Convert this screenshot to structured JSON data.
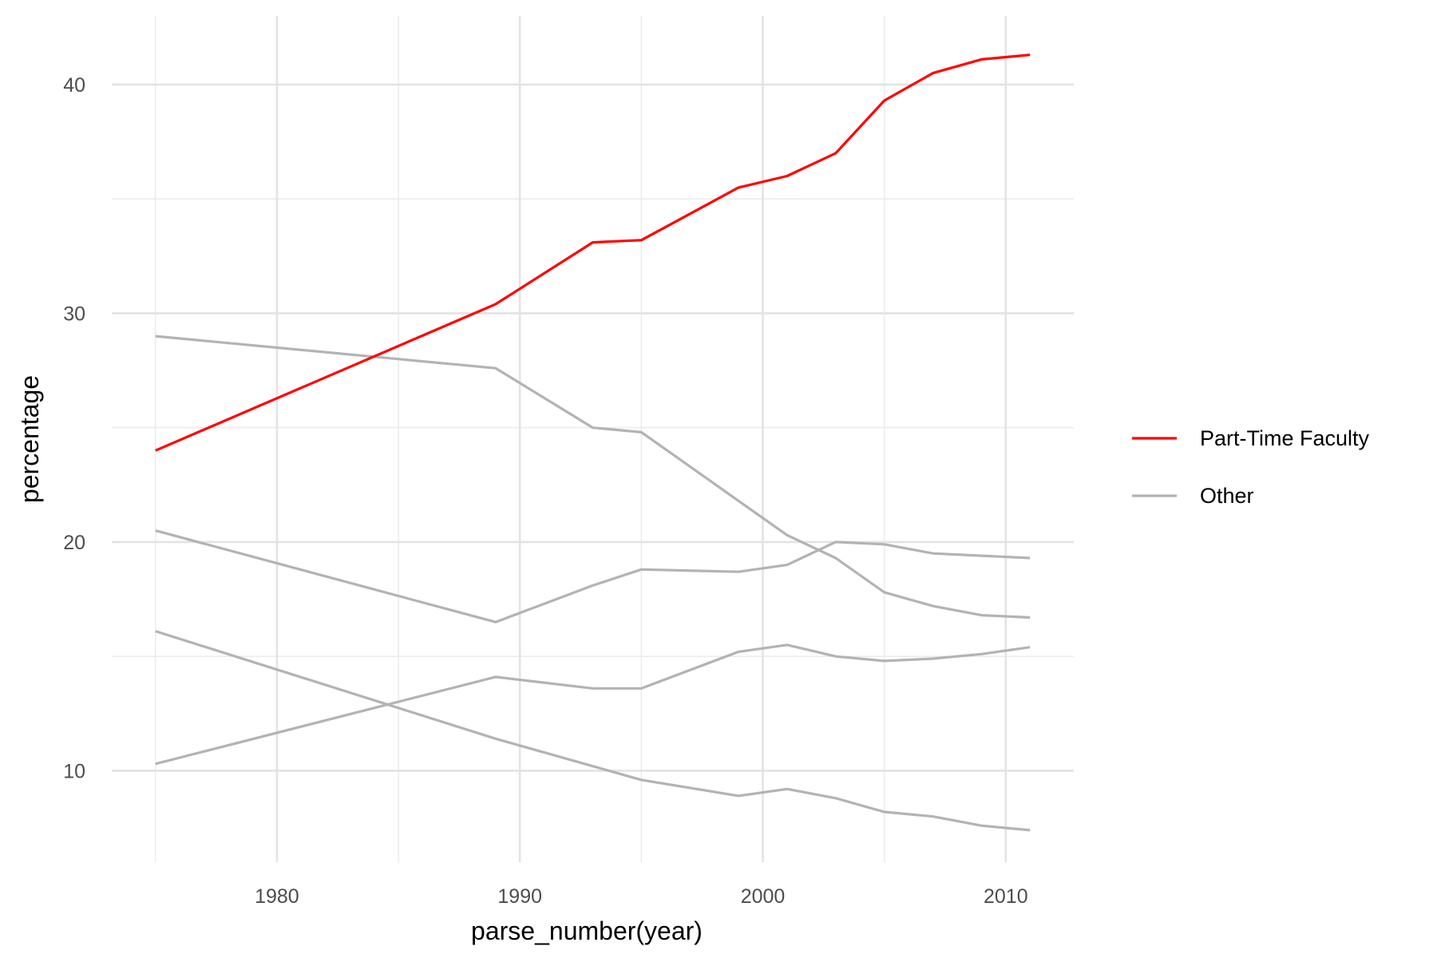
{
  "chart_data": {
    "type": "line",
    "title": "",
    "xlabel": "parse_number(year)",
    "ylabel": "percentage",
    "xlim": [
      1973.2,
      2012.8
    ],
    "ylim": [
      6.0,
      43.0
    ],
    "x_ticks": [
      1980,
      1990,
      2000,
      2010
    ],
    "x_tick_labels": [
      "1980",
      "1990",
      "2000",
      "2010"
    ],
    "y_ticks": [
      10,
      20,
      30,
      40
    ],
    "y_tick_labels": [
      "10",
      "20",
      "30",
      "40"
    ],
    "x_minor_ticks": [
      1975,
      1985,
      1995,
      2005
    ],
    "y_minor_ticks": [
      15,
      25,
      35
    ],
    "grid": true,
    "legend": {
      "placement": "right",
      "entries": [
        {
          "label": "Part-Time Faculty",
          "color": "#ff0000"
        },
        {
          "label": "Other",
          "color": "#b3b3b3"
        }
      ]
    },
    "series": [
      {
        "group": "Part-Time Faculty",
        "color": "#ff0000",
        "x": [
          1975,
          1989,
          1993,
          1995,
          1999,
          2001,
          2003,
          2005,
          2007,
          2009,
          2011
        ],
        "y": [
          24.0,
          30.4,
          33.1,
          33.2,
          35.5,
          36.0,
          37.0,
          39.3,
          40.5,
          41.1,
          41.3
        ]
      },
      {
        "group": "Other",
        "color": "#b3b3b3",
        "x": [
          1975,
          1989,
          1993,
          1995,
          1999,
          2001,
          2003,
          2005,
          2007,
          2009,
          2011
        ],
        "y": [
          29.0,
          27.6,
          25.0,
          24.8,
          21.8,
          20.3,
          19.3,
          17.8,
          17.2,
          16.8,
          16.7
        ]
      },
      {
        "group": "Other",
        "color": "#b3b3b3",
        "x": [
          1975,
          1989,
          1993,
          1995,
          1999,
          2001,
          2003,
          2005,
          2007,
          2009,
          2011
        ],
        "y": [
          20.5,
          16.5,
          18.1,
          18.8,
          18.7,
          19.0,
          20.0,
          19.9,
          19.5,
          19.4,
          19.3
        ]
      },
      {
        "group": "Other",
        "color": "#b3b3b3",
        "x": [
          1975,
          1989,
          1993,
          1995,
          1999,
          2001,
          2003,
          2005,
          2007,
          2009,
          2011
        ],
        "y": [
          10.3,
          14.1,
          13.6,
          13.6,
          15.2,
          15.5,
          15.0,
          14.8,
          14.9,
          15.1,
          15.4
        ]
      },
      {
        "group": "Other",
        "color": "#b3b3b3",
        "x": [
          1975,
          1989,
          1993,
          1995,
          1999,
          2001,
          2003,
          2005,
          2007,
          2009,
          2011
        ],
        "y": [
          16.1,
          11.4,
          10.2,
          9.6,
          8.9,
          9.2,
          8.8,
          8.2,
          8.0,
          7.6,
          7.4
        ]
      }
    ]
  }
}
